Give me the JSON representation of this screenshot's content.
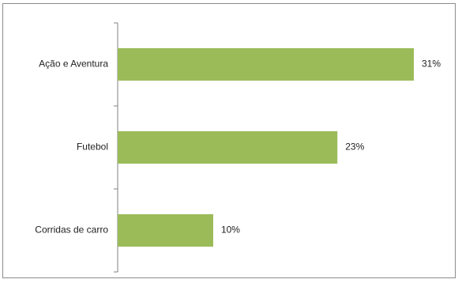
{
  "chart_data": {
    "type": "bar",
    "orientation": "horizontal",
    "title": "",
    "xlabel": "",
    "ylabel": "",
    "categories": [
      "Ação e  Aventura",
      "Futebol",
      "Corridas de carro"
    ],
    "values": [
      31,
      23,
      10
    ],
    "value_labels": [
      "31%",
      "23%",
      "10%"
    ],
    "unit": "%",
    "xlim": [
      0,
      32
    ],
    "grid": false,
    "legend": "none",
    "bar_color": "#9bbb59"
  }
}
